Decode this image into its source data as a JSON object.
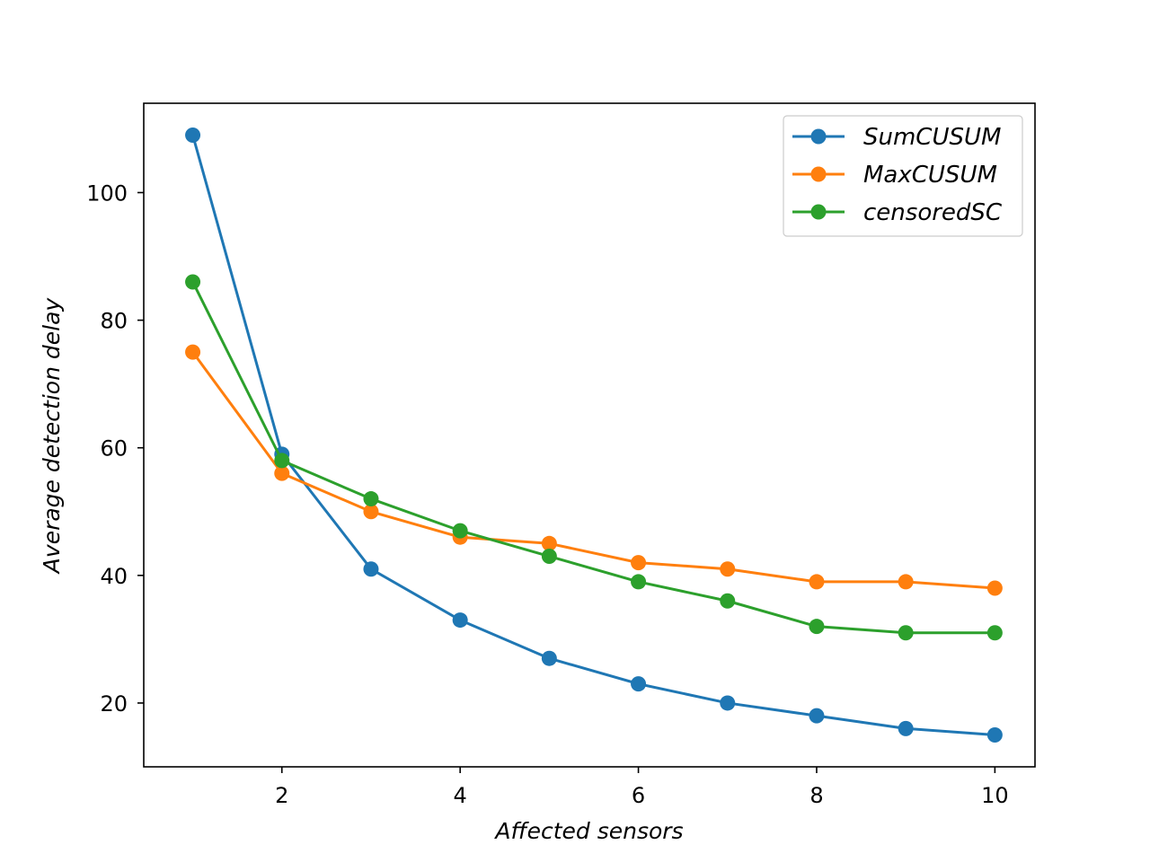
{
  "chart_data": {
    "type": "line",
    "title": "",
    "xlabel": "Affected sensors",
    "ylabel": "Average detection delay",
    "x": [
      1,
      2,
      3,
      4,
      5,
      6,
      7,
      8,
      9,
      10
    ],
    "xlim": [
      0.45,
      10.45
    ],
    "ylim": [
      10,
      114
    ],
    "xticks": [
      2,
      4,
      6,
      8,
      10
    ],
    "yticks": [
      20,
      40,
      60,
      80,
      100
    ],
    "grid": false,
    "legend_position": "top-right",
    "series": [
      {
        "name": "SumCUSUM",
        "color": "#1f77b4",
        "marker": "circle",
        "values": [
          109,
          59,
          41,
          33,
          27,
          23,
          20,
          18,
          16,
          15
        ]
      },
      {
        "name": "MaxCUSUM",
        "color": "#ff7f0e",
        "marker": "circle",
        "values": [
          75,
          56,
          50,
          46,
          45,
          42,
          41,
          39,
          39,
          38
        ]
      },
      {
        "name": "censoredSC",
        "color": "#2ca02c",
        "marker": "circle",
        "values": [
          86,
          58,
          52,
          47,
          43,
          39,
          36,
          32,
          31,
          31
        ]
      }
    ]
  }
}
